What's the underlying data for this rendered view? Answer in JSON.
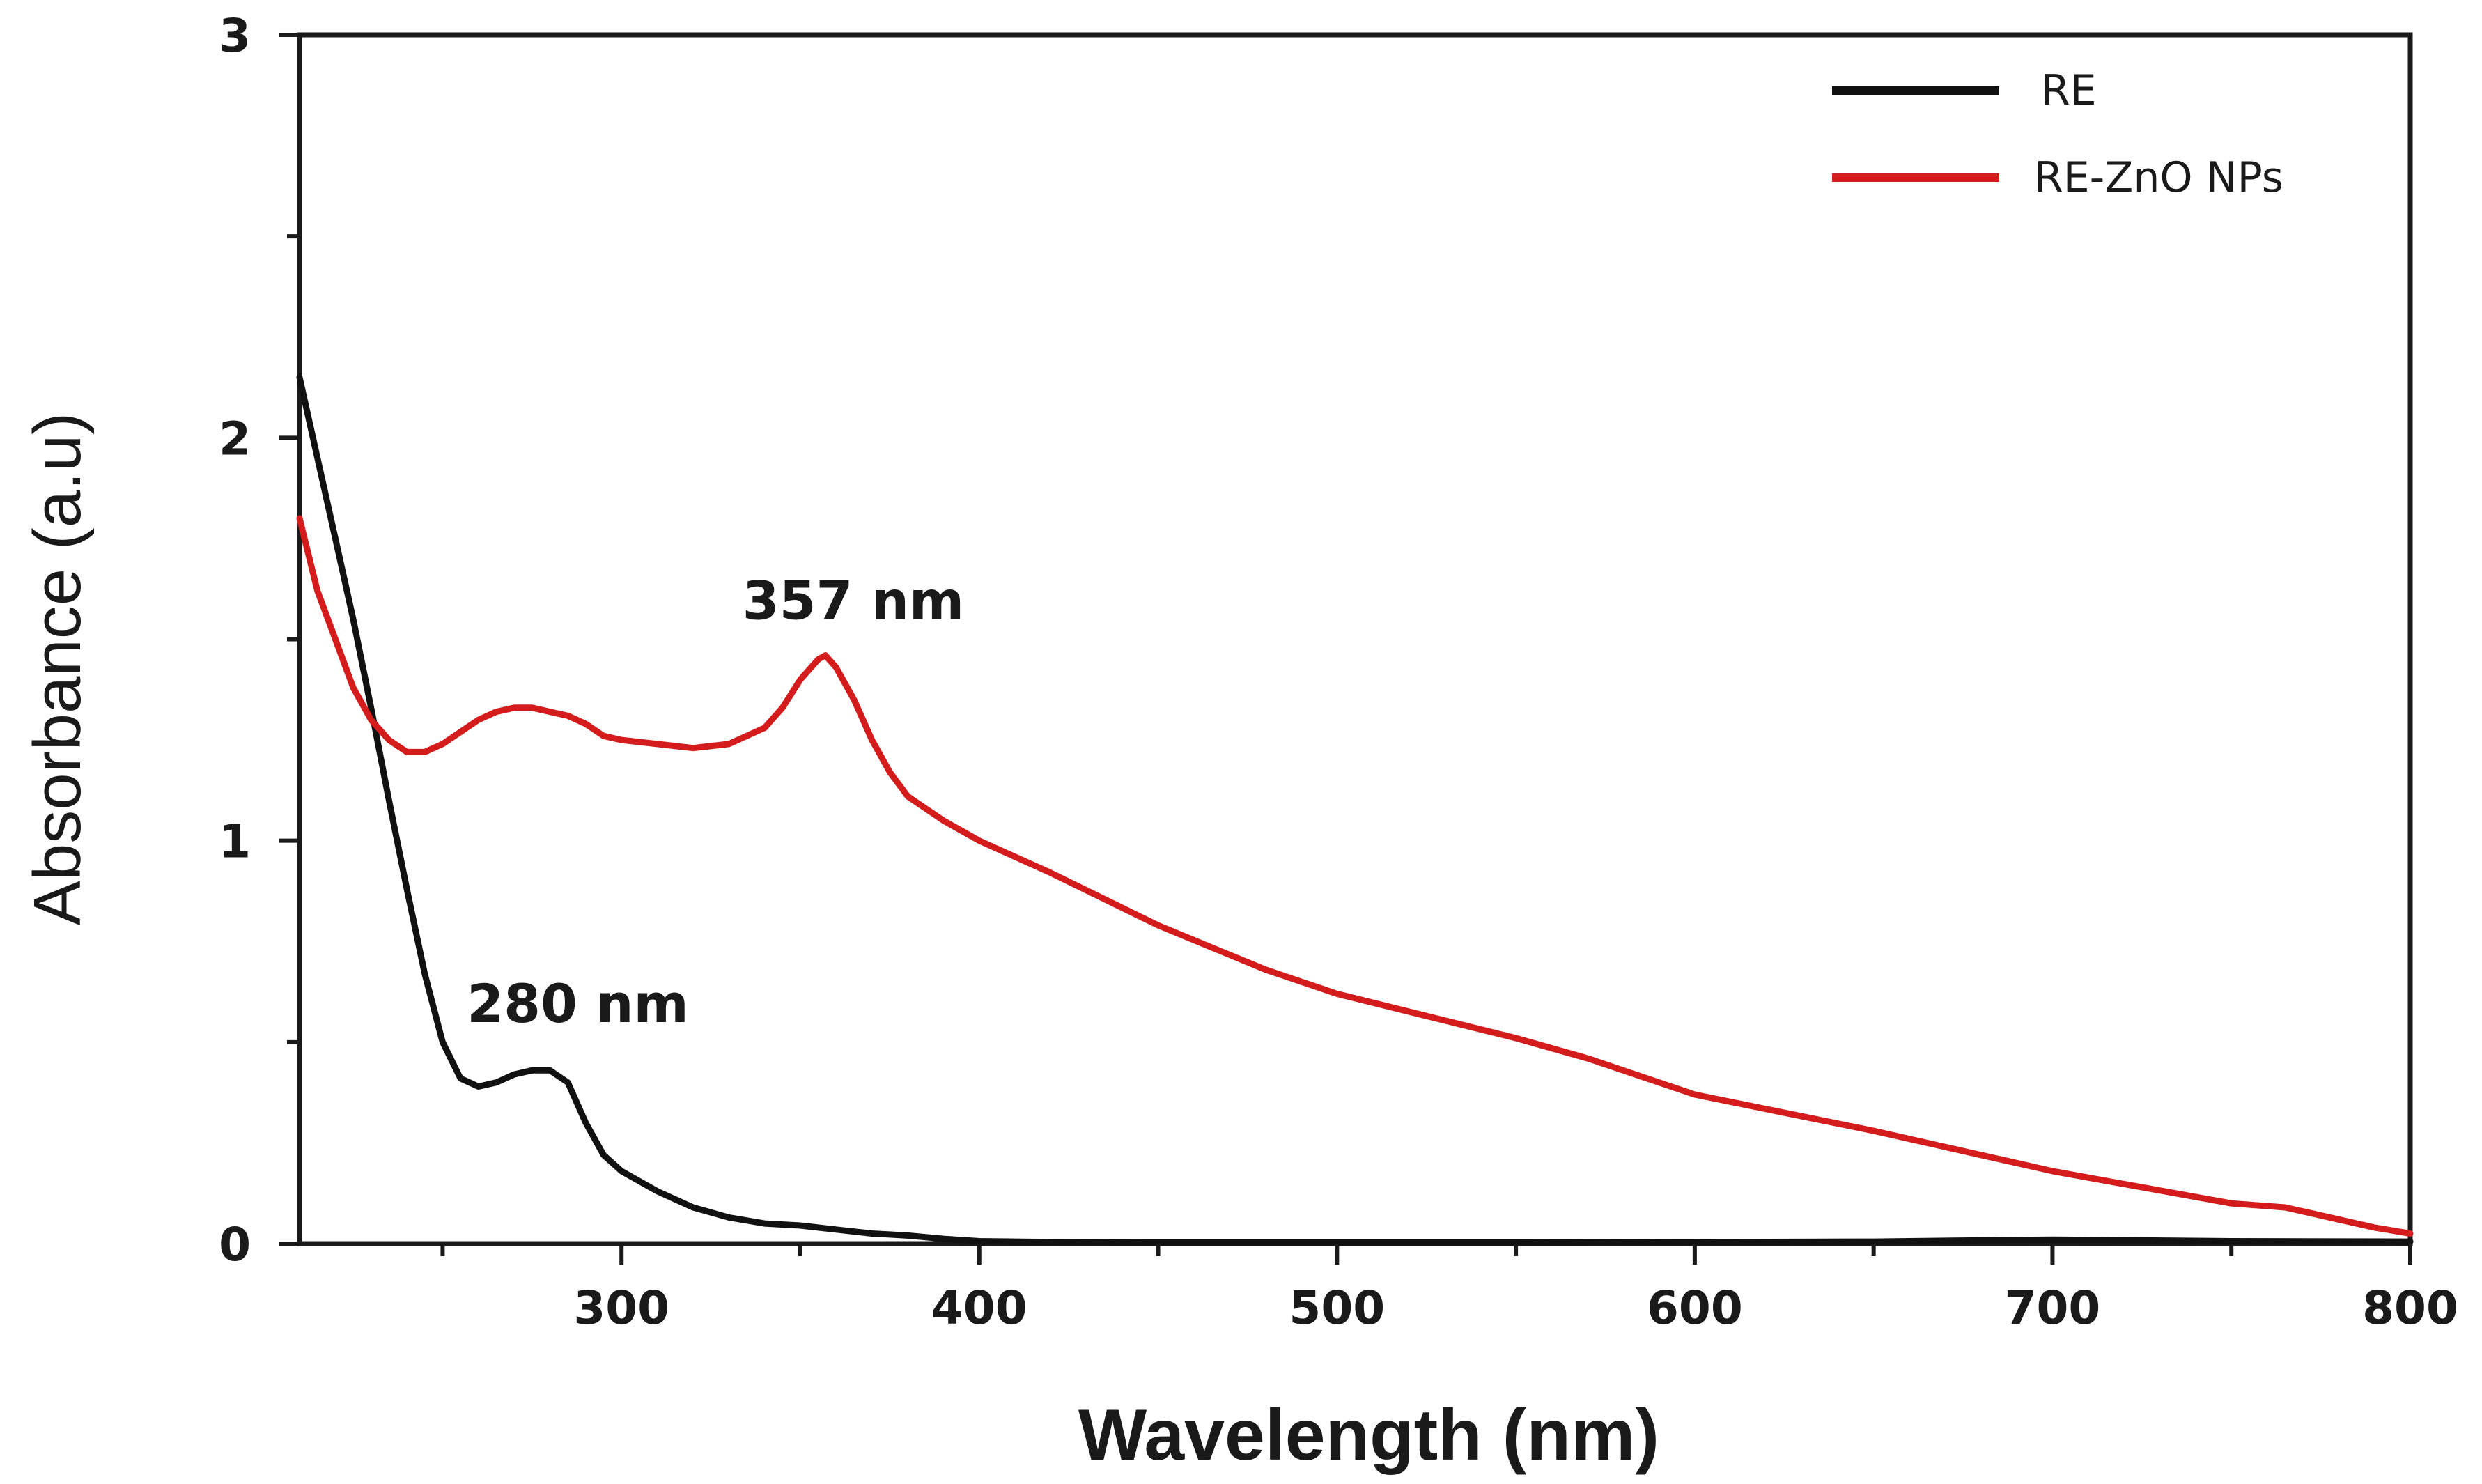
{
  "chart_data": {
    "type": "line",
    "title": "",
    "xlabel": "Wavelength (nm)",
    "ylabel": "Absorbance (a.u)",
    "xlim": [
      210,
      800
    ],
    "ylim": [
      0,
      3
    ],
    "grid": false,
    "legend_position": "top-right",
    "x_ticks": [
      300,
      400,
      500,
      600,
      700,
      800
    ],
    "x_tick_labels": [
      "300",
      "400",
      "500",
      "600",
      "700",
      "800"
    ],
    "y_ticks": [
      0,
      1,
      2,
      3
    ],
    "y_tick_labels": [
      "0",
      "1",
      "2",
      "3"
    ],
    "series": [
      {
        "name": "RE",
        "color": "#111111",
        "x": [
          210,
          215,
          220,
          225,
          230,
          235,
          240,
          245,
          250,
          255,
          260,
          265,
          270,
          275,
          280,
          285,
          290,
          295,
          300,
          310,
          320,
          330,
          340,
          350,
          360,
          370,
          380,
          390,
          400,
          420,
          450,
          500,
          550,
          600,
          650,
          700,
          750,
          800
        ],
        "y": [
          2.15,
          1.95,
          1.75,
          1.55,
          1.33,
          1.1,
          0.88,
          0.67,
          0.5,
          0.41,
          0.39,
          0.4,
          0.42,
          0.43,
          0.43,
          0.4,
          0.3,
          0.22,
          0.18,
          0.13,
          0.09,
          0.065,
          0.05,
          0.045,
          0.035,
          0.025,
          0.02,
          0.012,
          0.006,
          0.004,
          0.003,
          0.003,
          0.003,
          0.004,
          0.005,
          0.01,
          0.006,
          0.005
        ]
      },
      {
        "name": "RE-ZnO NPs",
        "color": "#d41c1c",
        "x": [
          210,
          215,
          220,
          225,
          230,
          235,
          240,
          245,
          250,
          255,
          260,
          265,
          270,
          275,
          280,
          285,
          290,
          295,
          300,
          310,
          320,
          330,
          340,
          345,
          350,
          355,
          357,
          360,
          365,
          370,
          375,
          380,
          390,
          400,
          420,
          450,
          480,
          500,
          550,
          570,
          600,
          650,
          700,
          750,
          765,
          770,
          780,
          790,
          800
        ],
        "y": [
          1.8,
          1.62,
          1.5,
          1.38,
          1.3,
          1.25,
          1.22,
          1.22,
          1.24,
          1.27,
          1.3,
          1.32,
          1.33,
          1.33,
          1.32,
          1.31,
          1.29,
          1.26,
          1.25,
          1.24,
          1.23,
          1.24,
          1.28,
          1.33,
          1.4,
          1.45,
          1.46,
          1.43,
          1.35,
          1.25,
          1.17,
          1.11,
          1.05,
          1.0,
          0.92,
          0.79,
          0.68,
          0.62,
          0.51,
          0.46,
          0.37,
          0.28,
          0.18,
          0.1,
          0.09,
          0.08,
          0.06,
          0.04,
          0.025
        ]
      }
    ],
    "annotations": [
      {
        "text": "280 nm",
        "x": 280,
        "y": 0.55
      },
      {
        "text": "357 nm",
        "x": 357,
        "y": 1.55
      }
    ]
  }
}
